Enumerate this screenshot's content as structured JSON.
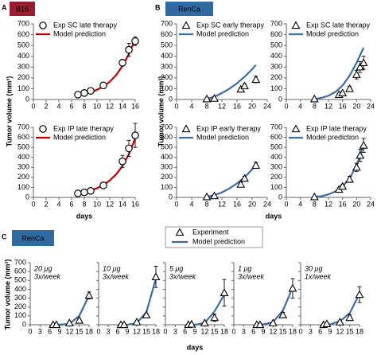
{
  "panels": [
    {
      "letter": "A",
      "tag": "B16",
      "tag_color": "#9b1c31",
      "ylabel": "Tumor volume (mm³)",
      "xlabel": "days"
    },
    {
      "letter": "B",
      "tag": "RenCa",
      "tag_color": "#2f6aa3",
      "ylabel": "Tumor volume (mm³)",
      "xlabel": "days"
    },
    {
      "letter": "C",
      "tag": "RenCa",
      "tag_color": "#2f6aa3",
      "ylabel": "Tumor volume (mm³)",
      "xlabel": "days",
      "legend": [
        {
          "name": "Experiment",
          "marker": "triangle"
        },
        {
          "name": "Model prediction",
          "color": "#3a6ea5"
        }
      ]
    }
  ],
  "chart_data": [
    {
      "type": "line",
      "legend": true,
      "xlim": [
        0,
        16
      ],
      "xticks": [
        0,
        2,
        4,
        6,
        8,
        10,
        12,
        14,
        16
      ],
      "ylim": [
        0,
        700
      ],
      "yticks": [
        0,
        100,
        200,
        300,
        400,
        500,
        600,
        700
      ],
      "series": [
        {
          "name": "Exp SC late therapy",
          "marker": "circle",
          "x": [
            7,
            8,
            9,
            11,
            14,
            15,
            16
          ],
          "values": [
            45,
            60,
            80,
            130,
            340,
            460,
            540
          ],
          "errors": [
            10,
            10,
            10,
            15,
            30,
            60,
            40
          ]
        },
        {
          "name": "Model prediction",
          "color": "#c00000",
          "x": [
            7,
            8,
            9,
            10,
            11,
            12,
            13,
            14,
            15,
            16
          ],
          "values": [
            40,
            50,
            65,
            90,
            120,
            165,
            225,
            310,
            420,
            560
          ]
        }
      ]
    },
    {
      "type": "line",
      "legend": true,
      "xlim": [
        0,
        16
      ],
      "xticks": [
        0,
        2,
        4,
        6,
        8,
        10,
        12,
        14,
        16
      ],
      "ylim": [
        0,
        700
      ],
      "yticks": [
        0,
        100,
        200,
        300,
        400,
        500,
        600,
        700
      ],
      "series": [
        {
          "name": "Exp IP late therapy",
          "marker": "circle",
          "x": [
            7,
            8,
            9,
            11,
            14,
            15,
            16
          ],
          "values": [
            40,
            50,
            65,
            120,
            360,
            490,
            620
          ],
          "errors": [
            8,
            10,
            10,
            15,
            60,
            80,
            120
          ]
        },
        {
          "name": "Model prediction",
          "color": "#c00000",
          "x": [
            7,
            8,
            9,
            10,
            11,
            12,
            13,
            14,
            15,
            16
          ],
          "values": [
            40,
            52,
            68,
            92,
            125,
            170,
            230,
            315,
            430,
            590
          ]
        }
      ]
    },
    {
      "type": "line",
      "legend": true,
      "xlim": [
        0,
        24
      ],
      "xticks": [
        0,
        4,
        8,
        12,
        16,
        20,
        24
      ],
      "ylim": [
        0,
        700
      ],
      "yticks": [
        0,
        100,
        200,
        300,
        400,
        500,
        600,
        700
      ],
      "series": [
        {
          "name": "Exp SC early therapy",
          "marker": "triangle",
          "x": [
            8,
            10,
            17,
            18,
            21
          ],
          "values": [
            5,
            10,
            95,
            125,
            185
          ],
          "errors": [
            3,
            5,
            15,
            20,
            30
          ]
        },
        {
          "name": "Model prediction",
          "color": "#3a6ea5",
          "x": [
            8,
            10,
            12,
            14,
            16,
            18,
            20,
            21
          ],
          "values": [
            5,
            25,
            60,
            100,
            150,
            210,
            280,
            320
          ]
        }
      ]
    },
    {
      "type": "line",
      "legend": true,
      "xlim": [
        0,
        24
      ],
      "xticks": [
        0,
        4,
        8,
        12,
        16,
        20,
        24
      ],
      "ylim": [
        0,
        700
      ],
      "yticks": [
        0,
        100,
        200,
        300,
        400,
        500,
        600,
        700
      ],
      "series": [
        {
          "name": "Exp SC late therapy",
          "marker": "triangle",
          "x": [
            8,
            15,
            16,
            18,
            20,
            21,
            22
          ],
          "values": [
            5,
            45,
            60,
            100,
            230,
            300,
            340
          ],
          "errors": [
            3,
            10,
            10,
            20,
            40,
            50,
            60
          ]
        },
        {
          "name": "Model prediction",
          "color": "#3a6ea5",
          "x": [
            8,
            10,
            12,
            14,
            16,
            18,
            20,
            22
          ],
          "values": [
            5,
            15,
            35,
            70,
            130,
            220,
            340,
            480
          ]
        }
      ]
    },
    {
      "type": "line",
      "legend": true,
      "xlim": [
        0,
        24
      ],
      "xticks": [
        0,
        4,
        8,
        12,
        16,
        20,
        24
      ],
      "ylim": [
        0,
        700
      ],
      "yticks": [
        0,
        100,
        200,
        300,
        400,
        500,
        600,
        700
      ],
      "series": [
        {
          "name": "Exp IP early therapy",
          "marker": "triangle",
          "x": [
            8,
            10,
            17,
            18,
            21
          ],
          "values": [
            5,
            15,
            130,
            190,
            320
          ],
          "errors": [
            5,
            5,
            20,
            20,
            30
          ]
        },
        {
          "name": "Model prediction",
          "color": "#3a6ea5",
          "x": [
            8,
            10,
            12,
            14,
            16,
            18,
            20,
            21
          ],
          "values": [
            5,
            22,
            50,
            90,
            140,
            200,
            280,
            320
          ]
        }
      ]
    },
    {
      "type": "line",
      "legend": true,
      "xlim": [
        0,
        24
      ],
      "xticks": [
        0,
        4,
        8,
        12,
        16,
        20,
        24
      ],
      "ylim": [
        0,
        700
      ],
      "yticks": [
        0,
        100,
        200,
        300,
        400,
        500,
        600,
        700
      ],
      "series": [
        {
          "name": "Exp IP late therapy",
          "marker": "triangle",
          "x": [
            8,
            15,
            16,
            18,
            20,
            21,
            22
          ],
          "values": [
            5,
            80,
            110,
            180,
            300,
            420,
            520
          ],
          "errors": [
            3,
            15,
            20,
            30,
            40,
            60,
            70
          ]
        },
        {
          "name": "Model prediction",
          "color": "#3a6ea5",
          "x": [
            8,
            10,
            12,
            14,
            16,
            18,
            20,
            22
          ],
          "values": [
            5,
            12,
            30,
            60,
            110,
            190,
            320,
            520
          ]
        }
      ]
    },
    {
      "type": "line",
      "annotation": [
        "20 μg",
        "3x/week"
      ],
      "annotation_color": "#2b2f7a",
      "xlim": [
        0,
        18
      ],
      "xticks": [
        0,
        3,
        6,
        9,
        12,
        15,
        18
      ],
      "ylim": [
        0,
        700
      ],
      "yticks": [
        0,
        100,
        200,
        300,
        400,
        500,
        600,
        700
      ],
      "series": [
        {
          "marker": "triangle",
          "x": [
            7,
            8,
            12,
            15,
            18
          ],
          "values": [
            0,
            0,
            20,
            50,
            330
          ],
          "errors": [
            10,
            10,
            15,
            15,
            40
          ]
        },
        {
          "color": "#3a6ea5",
          "x": [
            7,
            9,
            12,
            15,
            18
          ],
          "values": [
            0,
            0,
            10,
            100,
            330
          ]
        }
      ]
    },
    {
      "type": "line",
      "annotation": [
        "10 μg",
        "3x/week"
      ],
      "annotation_color": "#2b2f7a",
      "ytick_labels": false,
      "xlim": [
        0,
        18
      ],
      "xticks": [
        0,
        3,
        6,
        9,
        12,
        15,
        18
      ],
      "ylim": [
        0,
        700
      ],
      "yticks": [
        0,
        100,
        200,
        300,
        400,
        500,
        600,
        700
      ],
      "series": [
        {
          "marker": "triangle",
          "x": [
            7,
            8,
            12,
            15,
            18
          ],
          "values": [
            0,
            0,
            30,
            110,
            540
          ],
          "errors": [
            10,
            10,
            15,
            20,
            120
          ]
        },
        {
          "color": "#3a6ea5",
          "x": [
            7,
            9,
            12,
            15,
            18
          ],
          "values": [
            0,
            0,
            20,
            140,
            520
          ]
        }
      ]
    },
    {
      "type": "line",
      "annotation": [
        "5 μg",
        "3x/week"
      ],
      "annotation_color": "#2b2f7a",
      "ytick_labels": false,
      "xlim": [
        0,
        18
      ],
      "xticks": [
        0,
        3,
        6,
        9,
        12,
        15,
        18
      ],
      "ylim": [
        0,
        700
      ],
      "yticks": [
        0,
        100,
        200,
        300,
        400,
        500,
        600,
        700
      ],
      "series": [
        {
          "marker": "triangle",
          "x": [
            7,
            8,
            12,
            15,
            18
          ],
          "values": [
            0,
            5,
            20,
            80,
            360
          ],
          "errors": [
            10,
            10,
            15,
            40,
            150
          ]
        },
        {
          "color": "#3a6ea5",
          "x": [
            7,
            9,
            12,
            15,
            18
          ],
          "values": [
            0,
            0,
            20,
            150,
            340
          ]
        }
      ]
    },
    {
      "type": "line",
      "annotation": [
        "1 μg",
        "3x/week"
      ],
      "annotation_color": "#2b2f7a",
      "ytick_labels": false,
      "xlim": [
        0,
        18
      ],
      "xticks": [
        0,
        3,
        6,
        9,
        12,
        15,
        18
      ],
      "ylim": [
        0,
        700
      ],
      "yticks": [
        0,
        100,
        200,
        300,
        400,
        500,
        600,
        700
      ],
      "series": [
        {
          "marker": "triangle",
          "x": [
            7,
            8,
            12,
            15,
            18
          ],
          "values": [
            0,
            0,
            20,
            110,
            410
          ],
          "errors": [
            10,
            10,
            15,
            30,
            110
          ]
        },
        {
          "color": "#3a6ea5",
          "x": [
            7,
            9,
            12,
            15,
            18
          ],
          "values": [
            0,
            5,
            30,
            160,
            420
          ]
        }
      ]
    },
    {
      "type": "line",
      "annotation": [
        "30 μg",
        "1x/week"
      ],
      "annotation_color": "#2a9fd6",
      "ytick_labels": false,
      "xlim": [
        0,
        18
      ],
      "xticks": [
        0,
        3,
        6,
        9,
        12,
        15,
        18
      ],
      "ylim": [
        0,
        700
      ],
      "yticks": [
        0,
        100,
        200,
        300,
        400,
        500,
        600,
        700
      ],
      "series": [
        {
          "marker": "triangle",
          "x": [
            7,
            8,
            12,
            15,
            18
          ],
          "values": [
            0,
            10,
            30,
            80,
            340
          ],
          "errors": [
            10,
            10,
            15,
            30,
            90
          ]
        },
        {
          "color": "#3a6ea5",
          "x": [
            7,
            9,
            12,
            15,
            18
          ],
          "values": [
            0,
            5,
            40,
            130,
            350
          ]
        }
      ]
    }
  ]
}
